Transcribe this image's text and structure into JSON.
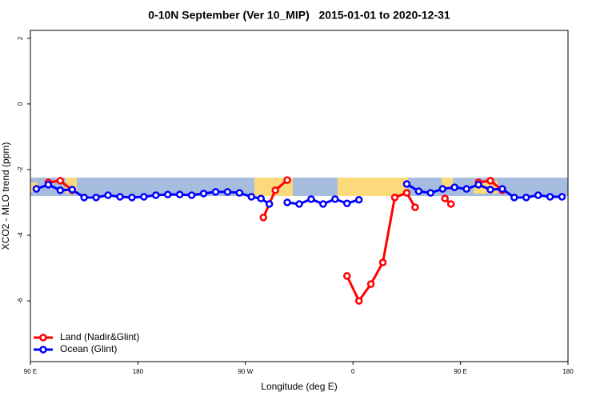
{
  "chart_data": {
    "type": "line",
    "title": "0-10N September (Ver 10_MIP)   2015-01-01 to 2020-12-31",
    "x_label": "Longitude (deg E)",
    "y_label": "XCO2 - MLO trend (ppm)",
    "xlim": [
      90,
      540
    ],
    "ylim": [
      -7.85,
      2.24
    ],
    "xticks": [
      {
        "value": 90,
        "label": "90 E"
      },
      {
        "value": 180,
        "label": "180"
      },
      {
        "value": 270,
        "label": "90 W"
      },
      {
        "value": 360,
        "label": "0"
      },
      {
        "value": 450,
        "label": "90 E"
      },
      {
        "value": 540,
        "label": "180"
      }
    ],
    "yticks": [
      -6,
      -4,
      -2,
      0,
      2
    ],
    "legend": "bottom-left",
    "series": [
      {
        "name": "Land (Nadir&Glint)",
        "color": "#ff0000",
        "x": [
          105,
          115,
          125,
          200,
          285,
          295,
          305,
          330,
          355,
          365,
          375,
          385,
          395,
          405,
          412,
          425,
          437,
          442,
          455,
          465,
          475,
          485
        ],
        "values": [
          -2.39,
          -2.34,
          -2.63,
          null,
          -3.46,
          -2.63,
          -2.32,
          null,
          -5.24,
          -6.0,
          -5.49,
          -4.83,
          -2.85,
          -2.71,
          -3.15,
          null,
          -2.88,
          -3.05,
          null,
          -2.39,
          -2.34,
          -2.63
        ]
      },
      {
        "name": "Ocean (Glint)",
        "color": "#0000ff",
        "x": [
          95,
          105,
          115,
          125,
          135,
          145,
          155,
          165,
          175,
          185,
          195,
          205,
          215,
          225,
          235,
          245,
          255,
          265,
          275,
          283,
          290,
          298,
          305,
          315,
          325,
          335,
          345,
          355,
          365,
          385,
          405,
          415,
          425,
          435,
          445,
          455,
          465,
          475,
          485,
          495,
          505,
          515,
          525,
          535
        ],
        "values": [
          -2.59,
          -2.46,
          -2.63,
          -2.61,
          -2.85,
          -2.85,
          -2.78,
          -2.83,
          -2.85,
          -2.83,
          -2.78,
          -2.76,
          -2.76,
          -2.78,
          -2.73,
          -2.68,
          -2.68,
          -2.71,
          -2.83,
          -2.88,
          -3.05,
          null,
          -3.0,
          -3.05,
          -2.9,
          -3.05,
          -2.9,
          -3.03,
          -2.92,
          null,
          -2.44,
          -2.66,
          -2.71,
          -2.59,
          -2.54,
          -2.59,
          -2.46,
          -2.61,
          -2.59,
          -2.85,
          -2.85,
          -2.78,
          -2.83,
          -2.83
        ]
      }
    ]
  }
}
